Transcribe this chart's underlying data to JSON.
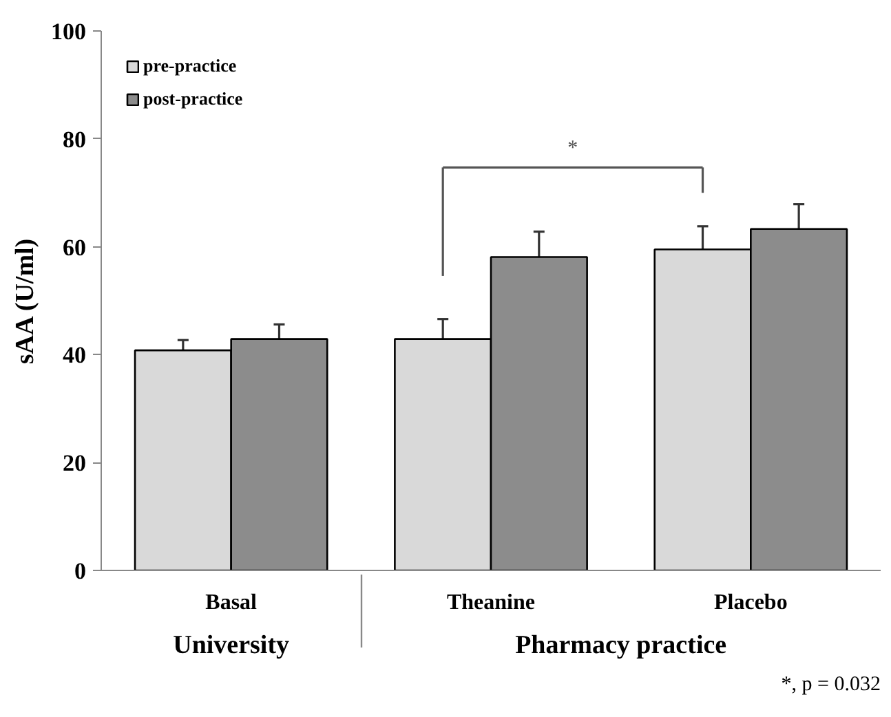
{
  "chart_data": {
    "type": "bar",
    "categories": [
      "Basal",
      "Theanine",
      "Placebo"
    ],
    "series": [
      {
        "name": "pre-practice",
        "color": "#d9d9d9",
        "values": [
          40.8,
          42.9,
          59.5
        ],
        "errors": [
          1.9,
          3.7,
          4.3
        ]
      },
      {
        "name": "post-practice",
        "color": "#8c8c8c",
        "values": [
          42.9,
          58.1,
          63.3
        ],
        "errors": [
          2.7,
          4.7,
          4.6
        ]
      }
    ],
    "ylabel": "sAA (U/ml)",
    "ylim": [
      0,
      100
    ],
    "yticks": [
      0,
      20,
      40,
      60,
      80,
      100
    ],
    "legend": "top left",
    "grid": false,
    "annotations": [
      "*",
      "University",
      "Pharmacy practice",
      "*, p = 0.032"
    ]
  }
}
